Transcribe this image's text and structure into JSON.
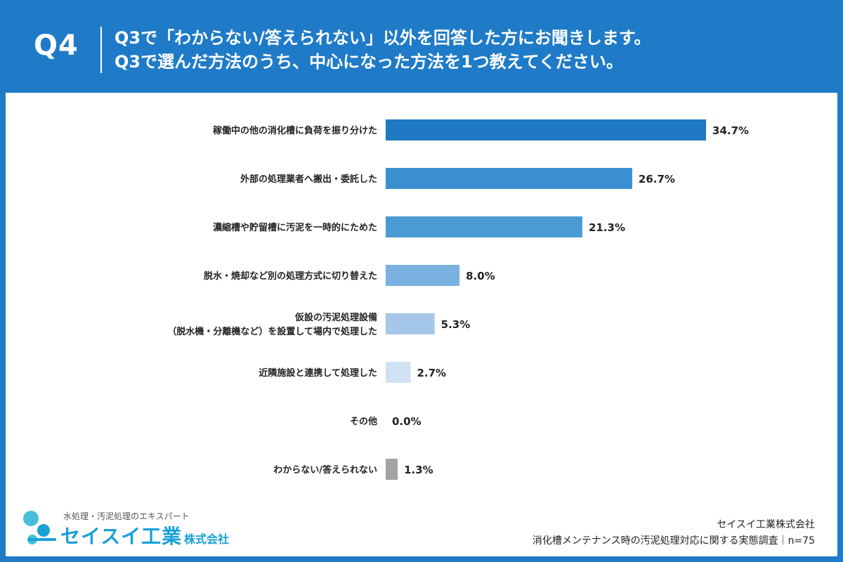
{
  "header": {
    "qnum": "Q4",
    "line1": "Q3で「わからない/答えられない」以外を回答した方にお聞きします。",
    "line2": "Q3で選んだ方法のうち、中心になった方法を1つ教えてください。"
  },
  "chart_data": {
    "type": "bar",
    "orientation": "horizontal",
    "categories": [
      [
        "稼働中の他の消化槽に負荷を振り分けた"
      ],
      [
        "外部の処理業者へ搬出・委託した"
      ],
      [
        "濃縮槽や貯留槽に汚泥を一時的にためた"
      ],
      [
        "脱水・焼却など別の処理方式に切り替えた"
      ],
      [
        "仮設の汚泥処理設備",
        "（脱水機・分離機など）を設置して場内で処理した"
      ],
      [
        "近隣施設と連携して処理した"
      ],
      [
        "その他"
      ],
      [
        "わからない/答えられない"
      ]
    ],
    "values": [
      34.7,
      26.7,
      21.3,
      8.0,
      5.3,
      2.7,
      0.0,
      1.3
    ],
    "labels": [
      "34.7%",
      "26.7%",
      "21.3%",
      "8.0%",
      "5.3%",
      "2.7%",
      "0.0%",
      "1.3%"
    ],
    "colors": [
      "#1f78c2",
      "#3a8fd0",
      "#4a9bd4",
      "#7ab1e0",
      "#a4c7ea",
      "#cfe2f4",
      "#cfe2f4",
      "#a3a3a3"
    ],
    "xlim": [
      0,
      35
    ],
    "unit": "%"
  },
  "footer": {
    "logo_tagline": "水処理・汚泥処理のエキスパート",
    "logo_name": "セイスイ工業",
    "logo_suffix": "株式会社",
    "company": "セイスイ工業株式会社",
    "survey": "消化槽メンテナンス時の汚泥処理対応に関する実態調査｜n=75"
  }
}
